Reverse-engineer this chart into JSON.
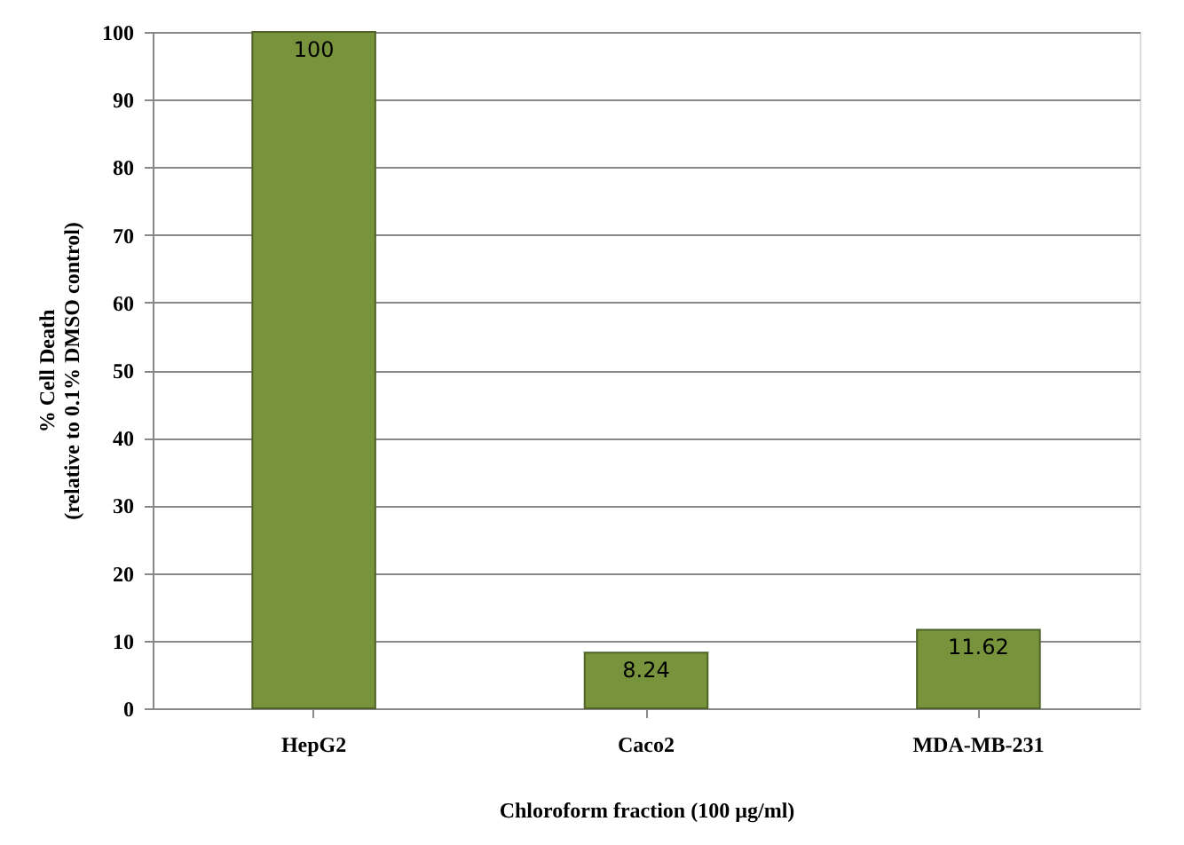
{
  "chart_data": {
    "type": "bar",
    "categories": [
      "HepG2",
      "Caco2",
      "MDA-MB-231"
    ],
    "values": [
      100,
      8.24,
      11.62
    ],
    "color": "#77933c",
    "xlabel": "Chloroform fraction (100 µg/ml)",
    "ylabel": "% Cell Death\n(relative to 0.1% DMSO control)",
    "ylim": [
      0,
      100
    ],
    "yticks": [
      0,
      10,
      20,
      30,
      40,
      50,
      60,
      70,
      80,
      90,
      100
    ],
    "grid": "y",
    "data_labels": true
  }
}
